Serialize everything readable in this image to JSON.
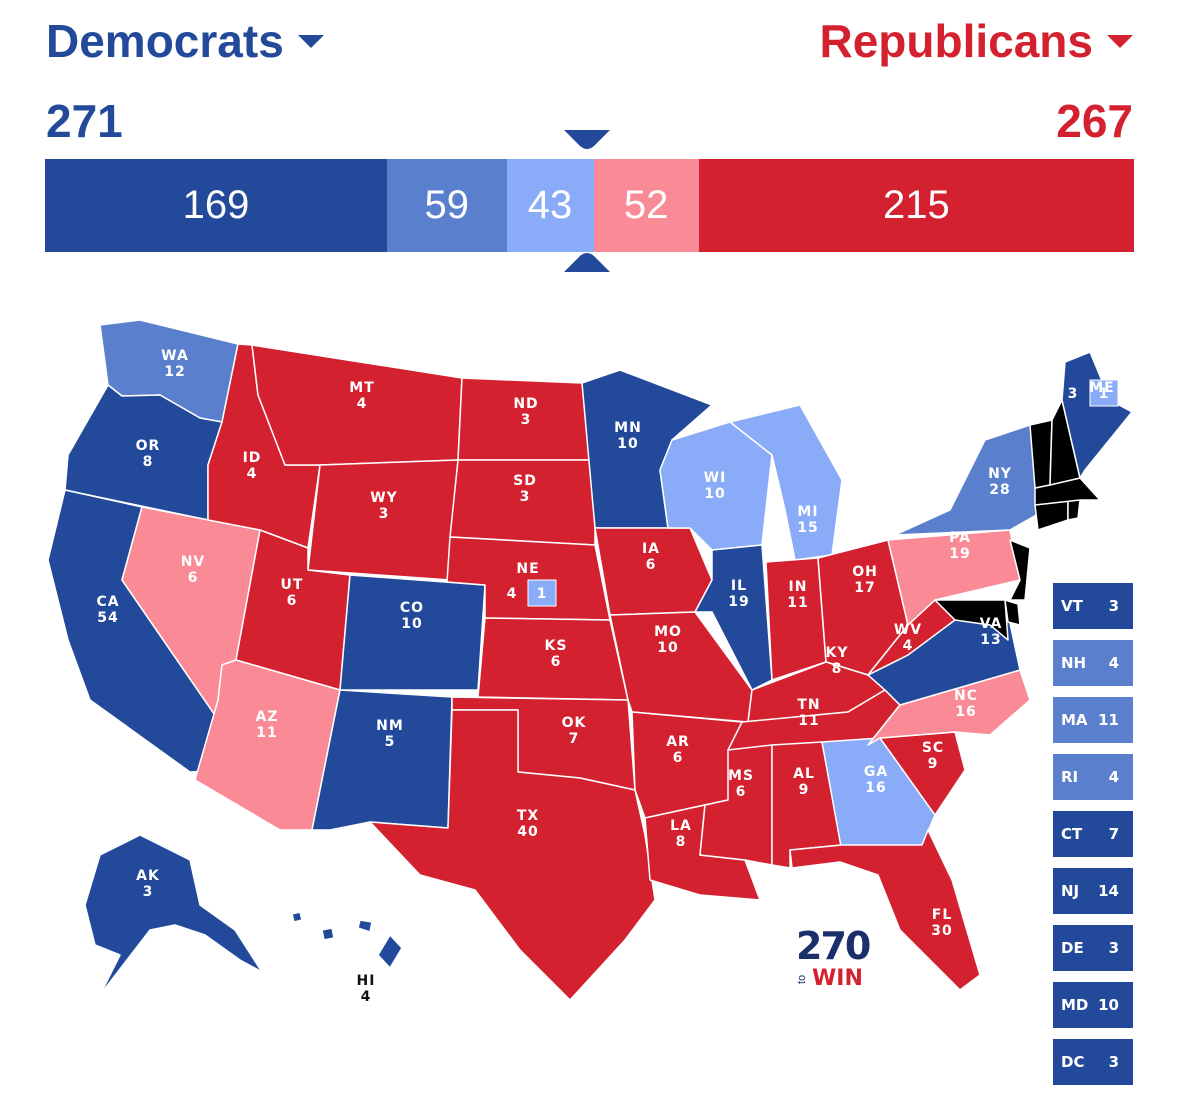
{
  "header": {
    "dem_name": "Democrats",
    "rep_name": "Republicans",
    "dem_total": "271",
    "rep_total": "267"
  },
  "colors": {
    "safe_dem": "#234a9a",
    "likely_dem": "#5a7fcc",
    "lean_dem": "#8aabf7",
    "lean_rep": "#fa8a96",
    "safe_rep": "#d3212f"
  },
  "bar": [
    {
      "label": "169",
      "value": 169,
      "rating": "safe_dem"
    },
    {
      "label": "59",
      "value": 59,
      "rating": "likely_dem"
    },
    {
      "label": "43",
      "value": 43,
      "rating": "lean_dem"
    },
    {
      "label": "52",
      "value": 52,
      "rating": "lean_rep"
    },
    {
      "label": "215",
      "value": 215,
      "rating": "safe_rep"
    }
  ],
  "states": {
    "WA": {
      "abbr": "WA",
      "ev": "12",
      "rating": "likely_dem"
    },
    "OR": {
      "abbr": "OR",
      "ev": "8",
      "rating": "safe_dem"
    },
    "CA": {
      "abbr": "CA",
      "ev": "54",
      "rating": "safe_dem"
    },
    "NV": {
      "abbr": "NV",
      "ev": "6",
      "rating": "lean_rep"
    },
    "ID": {
      "abbr": "ID",
      "ev": "4",
      "rating": "safe_rep"
    },
    "MT": {
      "abbr": "MT",
      "ev": "4",
      "rating": "safe_rep"
    },
    "WY": {
      "abbr": "WY",
      "ev": "3",
      "rating": "safe_rep"
    },
    "UT": {
      "abbr": "UT",
      "ev": "6",
      "rating": "safe_rep"
    },
    "AZ": {
      "abbr": "AZ",
      "ev": "11",
      "rating": "lean_rep"
    },
    "CO": {
      "abbr": "CO",
      "ev": "10",
      "rating": "safe_dem"
    },
    "NM": {
      "abbr": "NM",
      "ev": "5",
      "rating": "safe_dem"
    },
    "ND": {
      "abbr": "ND",
      "ev": "3",
      "rating": "safe_rep"
    },
    "SD": {
      "abbr": "SD",
      "ev": "3",
      "rating": "safe_rep"
    },
    "NE": {
      "abbr": "NE",
      "ev": "4",
      "rating": "safe_rep",
      "district_ev": "1",
      "district_rating": "lean_dem"
    },
    "KS": {
      "abbr": "KS",
      "ev": "6",
      "rating": "safe_rep"
    },
    "OK": {
      "abbr": "OK",
      "ev": "7",
      "rating": "safe_rep"
    },
    "TX": {
      "abbr": "TX",
      "ev": "40",
      "rating": "safe_rep"
    },
    "MN": {
      "abbr": "MN",
      "ev": "10",
      "rating": "safe_dem"
    },
    "IA": {
      "abbr": "IA",
      "ev": "6",
      "rating": "safe_rep"
    },
    "MO": {
      "abbr": "MO",
      "ev": "10",
      "rating": "safe_rep"
    },
    "AR": {
      "abbr": "AR",
      "ev": "6",
      "rating": "safe_rep"
    },
    "LA": {
      "abbr": "LA",
      "ev": "8",
      "rating": "safe_rep"
    },
    "WI": {
      "abbr": "WI",
      "ev": "10",
      "rating": "lean_dem"
    },
    "IL": {
      "abbr": "IL",
      "ev": "19",
      "rating": "safe_dem"
    },
    "MI": {
      "abbr": "MI",
      "ev": "15",
      "rating": "lean_dem"
    },
    "IN": {
      "abbr": "IN",
      "ev": "11",
      "rating": "safe_rep"
    },
    "OH": {
      "abbr": "OH",
      "ev": "17",
      "rating": "safe_rep"
    },
    "KY": {
      "abbr": "KY",
      "ev": "8",
      "rating": "safe_rep"
    },
    "TN": {
      "abbr": "TN",
      "ev": "11",
      "rating": "safe_rep"
    },
    "MS": {
      "abbr": "MS",
      "ev": "6",
      "rating": "safe_rep"
    },
    "AL": {
      "abbr": "AL",
      "ev": "9",
      "rating": "safe_rep"
    },
    "GA": {
      "abbr": "GA",
      "ev": "16",
      "rating": "lean_dem"
    },
    "FL": {
      "abbr": "FL",
      "ev": "30",
      "rating": "safe_rep"
    },
    "SC": {
      "abbr": "SC",
      "ev": "9",
      "rating": "safe_rep"
    },
    "NC": {
      "abbr": "NC",
      "ev": "16",
      "rating": "lean_rep"
    },
    "VA": {
      "abbr": "VA",
      "ev": "13",
      "rating": "safe_dem"
    },
    "WV": {
      "abbr": "WV",
      "ev": "4",
      "rating": "safe_rep"
    },
    "PA": {
      "abbr": "PA",
      "ev": "19",
      "rating": "lean_rep"
    },
    "NY": {
      "abbr": "NY",
      "ev": "28",
      "rating": "likely_dem"
    },
    "ME": {
      "abbr": "ME",
      "ev": "3",
      "rating": "safe_dem",
      "district_ev": "1",
      "district_rating": "lean_dem"
    },
    "AK": {
      "abbr": "AK",
      "ev": "3",
      "rating": "safe_dem"
    },
    "HI": {
      "abbr": "HI",
      "ev": "4",
      "rating": "safe_dem"
    }
  },
  "small_states": [
    {
      "abbr": "VT",
      "ev": "3",
      "rating": "safe_dem"
    },
    {
      "abbr": "NH",
      "ev": "4",
      "rating": "likely_dem"
    },
    {
      "abbr": "MA",
      "ev": "11",
      "rating": "likely_dem"
    },
    {
      "abbr": "RI",
      "ev": "4",
      "rating": "likely_dem"
    },
    {
      "abbr": "CT",
      "ev": "7",
      "rating": "safe_dem"
    },
    {
      "abbr": "NJ",
      "ev": "14",
      "rating": "safe_dem"
    },
    {
      "abbr": "DE",
      "ev": "3",
      "rating": "safe_dem"
    },
    {
      "abbr": "MD",
      "ev": "10",
      "rating": "safe_dem"
    },
    {
      "abbr": "DC",
      "ev": "3",
      "rating": "safe_dem"
    }
  ],
  "logo": {
    "number": "270",
    "to": "to",
    "win": "WIN"
  }
}
